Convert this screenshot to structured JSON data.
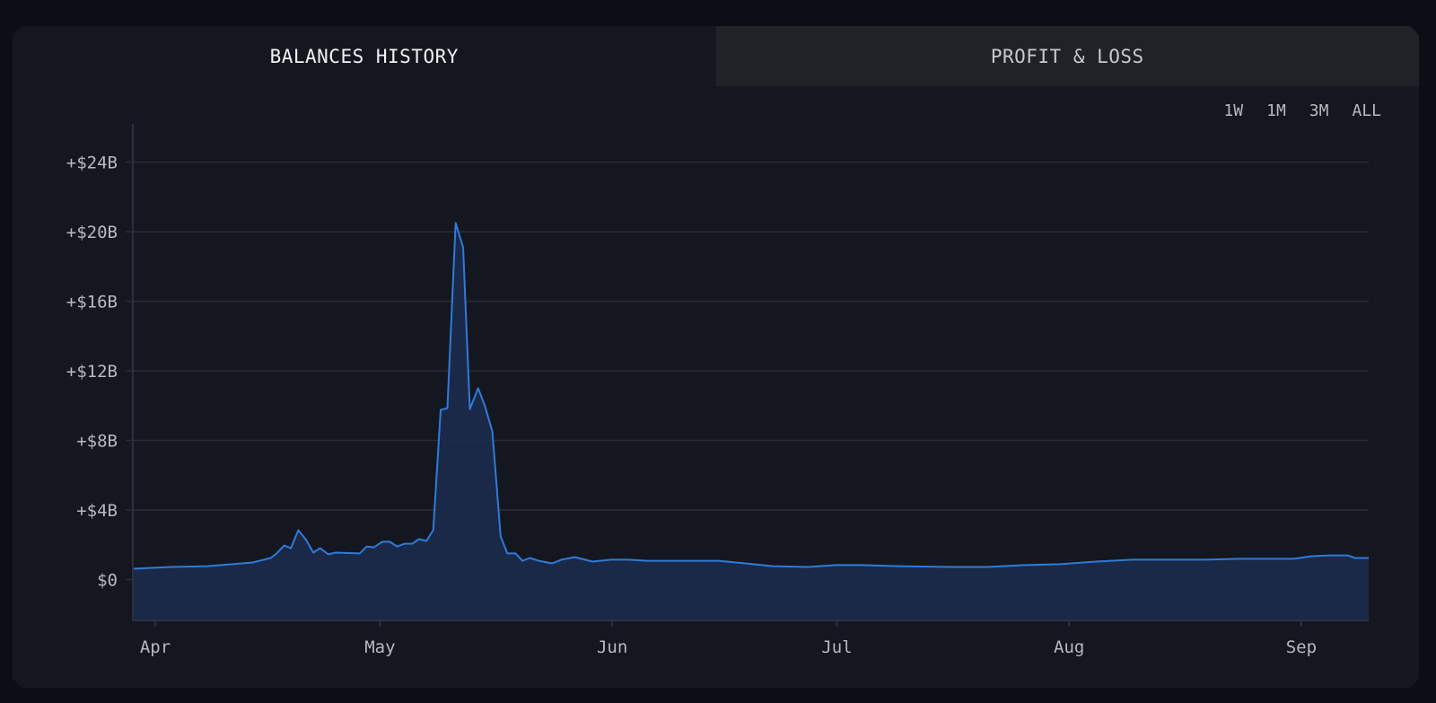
{
  "page": {
    "background": "#0b0e16",
    "card_background": "#141720"
  },
  "tabs": [
    {
      "label": "BALANCES HISTORY",
      "active": true
    },
    {
      "label": "PROFIT & LOSS",
      "active": false
    }
  ],
  "time_ranges": [
    {
      "label": "1W"
    },
    {
      "label": "1M"
    },
    {
      "label": "3M"
    },
    {
      "label": "ALL"
    }
  ],
  "colors": {
    "line": "#2f7bd9",
    "area_fill": "#1b2b4b",
    "grid": "#2b2d33",
    "axis": "#2c2f45",
    "tick_label": "#b9b9bd"
  },
  "chart_data": {
    "type": "area",
    "title": "Balances History",
    "xlabel": "",
    "ylabel": "",
    "ylim": [
      -2.35,
      26.2
    ],
    "yunit": "B USD",
    "yticks": [
      {
        "value": 24,
        "label": "+$24B"
      },
      {
        "value": 20,
        "label": "+$20B"
      },
      {
        "value": 16,
        "label": "+$16B"
      },
      {
        "value": 12,
        "label": "+$12B"
      },
      {
        "value": 8,
        "label": "+$8B"
      },
      {
        "value": 4,
        "label": "+$4B"
      },
      {
        "value": 0,
        "label": "$0"
      }
    ],
    "xticks": [
      {
        "day": 3,
        "label": "Apr"
      },
      {
        "day": 33,
        "label": "May"
      },
      {
        "day": 64,
        "label": "Jun"
      },
      {
        "day": 94,
        "label": "Jul"
      },
      {
        "day": 125,
        "label": "Aug"
      },
      {
        "day": 156,
        "label": "Sep"
      }
    ],
    "xlim_days": [
      0,
      165
    ],
    "grid": true,
    "legend": null,
    "series": [
      {
        "name": "Balance",
        "points_day_value": [
          [
            0,
            0.62
          ],
          [
            5,
            0.72
          ],
          [
            10,
            0.77
          ],
          [
            16,
            0.98
          ],
          [
            18.4,
            1.24
          ],
          [
            19.2,
            1.5
          ],
          [
            20.2,
            1.96
          ],
          [
            21.1,
            1.8
          ],
          [
            22.1,
            2.84
          ],
          [
            23.1,
            2.3
          ],
          [
            24.1,
            1.55
          ],
          [
            25.0,
            1.8
          ],
          [
            26.1,
            1.45
          ],
          [
            27.1,
            1.55
          ],
          [
            30.3,
            1.5
          ],
          [
            31.2,
            1.9
          ],
          [
            32.2,
            1.85
          ],
          [
            33.3,
            2.17
          ],
          [
            34.3,
            2.17
          ],
          [
            35.3,
            1.9
          ],
          [
            36.3,
            2.06
          ],
          [
            37.3,
            2.06
          ],
          [
            38.2,
            2.32
          ],
          [
            39.2,
            2.22
          ],
          [
            40.1,
            2.84
          ],
          [
            41.1,
            9.75
          ],
          [
            42.0,
            9.86
          ],
          [
            43.1,
            20.5
          ],
          [
            44.1,
            19.1
          ],
          [
            45.0,
            9.8
          ],
          [
            46.1,
            11.0
          ],
          [
            47.0,
            10.0
          ],
          [
            48.0,
            8.5
          ],
          [
            49.1,
            2.48
          ],
          [
            50.0,
            1.5
          ],
          [
            51.1,
            1.5
          ],
          [
            52.0,
            1.08
          ],
          [
            53.0,
            1.24
          ],
          [
            54.2,
            1.08
          ],
          [
            56.0,
            0.93
          ],
          [
            57.2,
            1.14
          ],
          [
            59.0,
            1.29
          ],
          [
            61.4,
            1.03
          ],
          [
            63.8,
            1.14
          ],
          [
            66.2,
            1.14
          ],
          [
            68.6,
            1.08
          ],
          [
            73.4,
            1.08
          ],
          [
            78.2,
            1.08
          ],
          [
            81.8,
            0.93
          ],
          [
            85.4,
            0.77
          ],
          [
            90.2,
            0.72
          ],
          [
            93.8,
            0.83
          ],
          [
            97.4,
            0.83
          ],
          [
            102.2,
            0.77
          ],
          [
            109.4,
            0.72
          ],
          [
            114.2,
            0.72
          ],
          [
            119.0,
            0.83
          ],
          [
            123.8,
            0.88
          ],
          [
            128.6,
            1.03
          ],
          [
            133.4,
            1.14
          ],
          [
            138.2,
            1.14
          ],
          [
            143.0,
            1.14
          ],
          [
            147.8,
            1.19
          ],
          [
            152.6,
            1.19
          ],
          [
            155.0,
            1.19
          ],
          [
            157.4,
            1.34
          ],
          [
            159.8,
            1.39
          ],
          [
            162.2,
            1.39
          ],
          [
            163.2,
            1.24
          ],
          [
            165.0,
            1.24
          ]
        ]
      }
    ]
  }
}
